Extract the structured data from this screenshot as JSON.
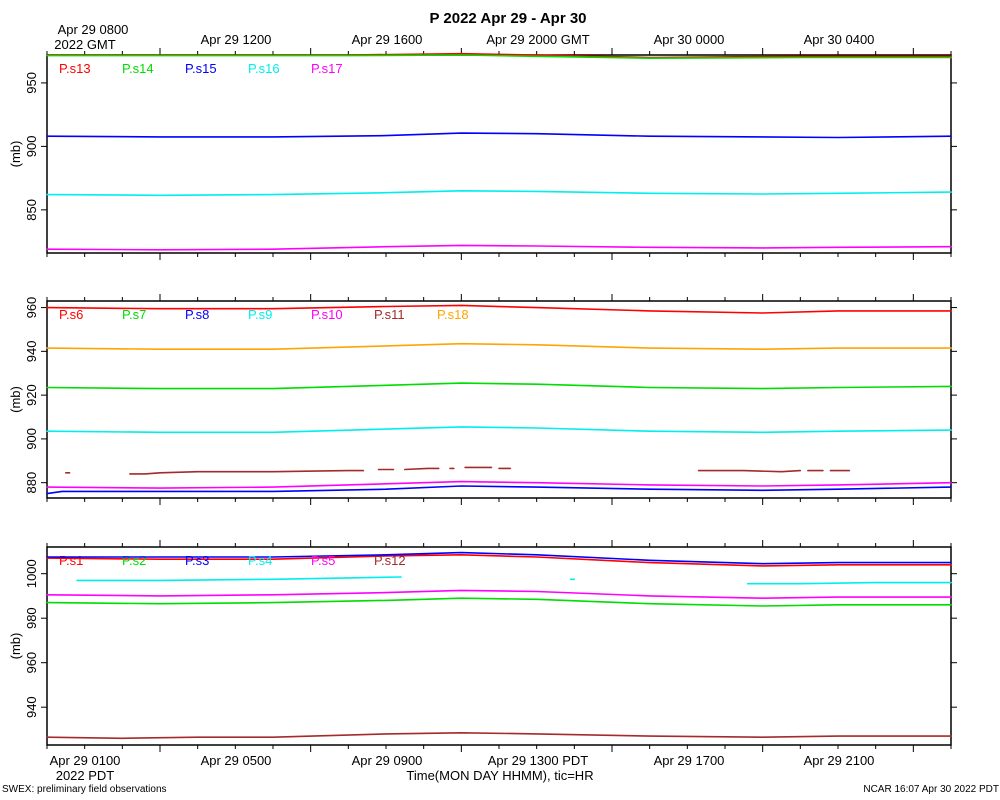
{
  "title": "P 2022 Apr 29 - Apr 30",
  "top_axis": {
    "first_label_line1": "Apr 29 0800",
    "first_label_line2": "2022 GMT",
    "labels": [
      "Apr 29 1200",
      "Apr 29 1600",
      "Apr 29 2000 GMT",
      "Apr 30 0000",
      "Apr 30 0400"
    ]
  },
  "bottom_axis": {
    "labels": [
      "Apr 29 0100",
      "Apr 29 0500",
      "Apr 29 0900",
      "Apr 29 1300 PDT",
      "Apr 29 1700",
      "Apr 29 2100"
    ],
    "year_label": "2022 PDT",
    "xlabel": "Time(MON DAY HHMM), tic=HR"
  },
  "footer": {
    "left": "SWEX: preliminary field observations",
    "right": "NCAR 16:07 Apr 30 2022 PDT"
  },
  "chart_data": [
    {
      "type": "line",
      "panel": "top",
      "ylabel": "(mb)",
      "x_unit": "hours since Apr 29 0000 PDT",
      "xlim": [
        0,
        24
      ],
      "ylim": [
        816,
        972
      ],
      "yticks": [
        850,
        900,
        950
      ],
      "series": [
        {
          "name": "P.s13",
          "color": "#ff0000",
          "x": [
            0,
            4,
            8,
            11,
            13,
            16,
            20,
            24
          ],
          "values": [
            972,
            972,
            972,
            973,
            972,
            970,
            971,
            971
          ]
        },
        {
          "name": "P.s14",
          "color": "#00dd00",
          "x": [
            0,
            4,
            8,
            11,
            13,
            16,
            20,
            24
          ],
          "values": [
            971.5,
            971.5,
            971.5,
            972,
            971,
            969.5,
            970,
            970
          ]
        },
        {
          "name": "P.s15",
          "color": "#0000ff",
          "x": [
            0,
            3,
            6,
            9,
            11,
            13,
            16,
            19,
            21,
            24
          ],
          "values": [
            908,
            907.5,
            907.5,
            908.5,
            910.5,
            910,
            908,
            907.5,
            907,
            908
          ]
        },
        {
          "name": "P.s16",
          "color": "#00eeee",
          "x": [
            0,
            3,
            6,
            9,
            11,
            13,
            16,
            19,
            21,
            24
          ],
          "values": [
            862,
            861.5,
            862,
            863.5,
            865,
            864.5,
            863,
            862.5,
            863,
            864
          ]
        },
        {
          "name": "P.s17",
          "color": "#ff00ff",
          "x": [
            0,
            3,
            6,
            9,
            11,
            13,
            16,
            19,
            21,
            24
          ],
          "values": [
            819,
            818.5,
            819,
            821,
            822,
            821.5,
            820.5,
            820,
            820.5,
            821
          ]
        }
      ]
    },
    {
      "type": "line",
      "panel": "middle",
      "ylabel": "(mb)",
      "x_unit": "hours since Apr 29 0000 PDT",
      "xlim": [
        0,
        24
      ],
      "ylim": [
        873,
        963
      ],
      "yticks": [
        880,
        900,
        920,
        940,
        960
      ],
      "series": [
        {
          "name": "P.s6",
          "color": "#ff0000",
          "x": [
            0,
            3,
            6,
            9,
            11,
            13,
            16,
            19,
            21,
            24
          ],
          "values": [
            960,
            959.5,
            959.5,
            960.5,
            961,
            960,
            958.5,
            957.5,
            958.5,
            958.5
          ]
        },
        {
          "name": "P.s7",
          "color": "#00dd00",
          "x": [
            0,
            3,
            6,
            9,
            11,
            13,
            16,
            19,
            21,
            24
          ],
          "values": [
            923.5,
            923,
            923,
            924.5,
            925.5,
            925,
            923.5,
            923,
            923.5,
            924
          ]
        },
        {
          "name": "P.s8",
          "color": "#0000ff",
          "x": [
            0,
            0.4,
            3,
            6,
            9,
            11,
            13,
            16,
            19,
            21,
            24
          ],
          "values": [
            875,
            876,
            876,
            876,
            877,
            878.5,
            878,
            877,
            876.5,
            877,
            878
          ]
        },
        {
          "name": "P.s9",
          "color": "#00eeee",
          "x": [
            0,
            3,
            6,
            9,
            11,
            13,
            16,
            19,
            21,
            24
          ],
          "values": [
            903.5,
            903,
            903,
            904.5,
            905.5,
            905,
            903.5,
            903,
            903.5,
            904
          ]
        },
        {
          "name": "P.s10",
          "color": "#ff00ff",
          "x": [
            0,
            3,
            6,
            9,
            11,
            13,
            16,
            19,
            21,
            24
          ],
          "values": [
            878,
            877.5,
            878,
            879.5,
            880.5,
            880,
            879,
            878.5,
            879,
            880
          ]
        },
        {
          "name": "P.s11",
          "color": "#a52a2a",
          "x": [
            0.5,
            0.6,
            null,
            2.2,
            2.6,
            3,
            4,
            6,
            8,
            8.4,
            null,
            8.8,
            9.2,
            null,
            9.5,
            10.1,
            10.4,
            null,
            10.7,
            10.8,
            null,
            11.1,
            11.8,
            null,
            12,
            12.3,
            null,
            17.3,
            18.5,
            19.5,
            20,
            null,
            20.2,
            20.6,
            null,
            20.8,
            21.3
          ],
          "values": [
            884.5,
            884.5,
            null,
            884,
            884,
            884.5,
            885,
            885,
            885.5,
            885.5,
            null,
            886,
            886,
            null,
            886,
            886.5,
            886.5,
            null,
            886.5,
            886.5,
            null,
            887,
            887,
            null,
            886.5,
            886.5,
            null,
            885.5,
            885.5,
            885,
            885.5,
            null,
            885.5,
            885.5,
            null,
            885.5,
            885.5
          ]
        },
        {
          "name": "P.s18",
          "color": "#ffa500",
          "x": [
            0,
            3,
            6,
            9,
            11,
            13,
            16,
            19,
            21,
            24
          ],
          "values": [
            941.5,
            941,
            941,
            942.5,
            943.5,
            943,
            941.5,
            941,
            941.5,
            941.5
          ]
        }
      ]
    },
    {
      "type": "line",
      "panel": "bottom",
      "ylabel": "(mb)",
      "x_unit": "hours since Apr 29 0000 PDT",
      "xlim": [
        0,
        24
      ],
      "ylim": [
        923,
        1012
      ],
      "yticks": [
        940,
        960,
        980,
        1000
      ],
      "series": [
        {
          "name": "P.s1",
          "color": "#ff0000",
          "x": [
            0,
            3,
            6,
            9,
            11,
            13,
            16,
            19,
            21,
            24
          ],
          "values": [
            1007,
            1006.5,
            1006.5,
            1008,
            1008.5,
            1007.5,
            1005,
            1003.5,
            1004,
            1004
          ]
        },
        {
          "name": "P.s2",
          "color": "#00dd00",
          "x": [
            0,
            3,
            6,
            9,
            11,
            13,
            16,
            19,
            21,
            24
          ],
          "values": [
            987,
            986.5,
            987,
            988,
            989,
            988.5,
            986.5,
            985.5,
            986,
            986
          ]
        },
        {
          "name": "P.s3",
          "color": "#0000ff",
          "x": [
            0,
            3,
            6,
            9,
            11,
            13,
            16,
            19,
            21,
            24
          ],
          "values": [
            1007.5,
            1007.5,
            1007.5,
            1008.5,
            1009.5,
            1008.5,
            1006,
            1004.5,
            1005,
            1005
          ]
        },
        {
          "name": "P.s4",
          "color": "#00eeee",
          "x": [
            0.8,
            3,
            6,
            9.4,
            null,
            13.9,
            14,
            null,
            18.6,
            20,
            22,
            24
          ],
          "values": [
            997,
            997,
            997.5,
            998.5,
            null,
            997.5,
            997.5,
            null,
            995.5,
            995.5,
            996,
            996
          ]
        },
        {
          "name": "P.s5",
          "color": "#ff00ff",
          "x": [
            0,
            3,
            6,
            9,
            11,
            13,
            16,
            19,
            21,
            24
          ],
          "values": [
            990.5,
            990,
            990.5,
            991.5,
            992.5,
            992,
            990,
            989,
            989.5,
            989.5
          ]
        },
        {
          "name": "P.s12",
          "color": "#a52a2a",
          "x": [
            0,
            2,
            4,
            6,
            9,
            11,
            13,
            16,
            19,
            21,
            24
          ],
          "values": [
            926.5,
            926,
            926.5,
            926.5,
            928,
            928.5,
            928,
            927,
            926.5,
            927,
            927
          ]
        }
      ]
    }
  ]
}
